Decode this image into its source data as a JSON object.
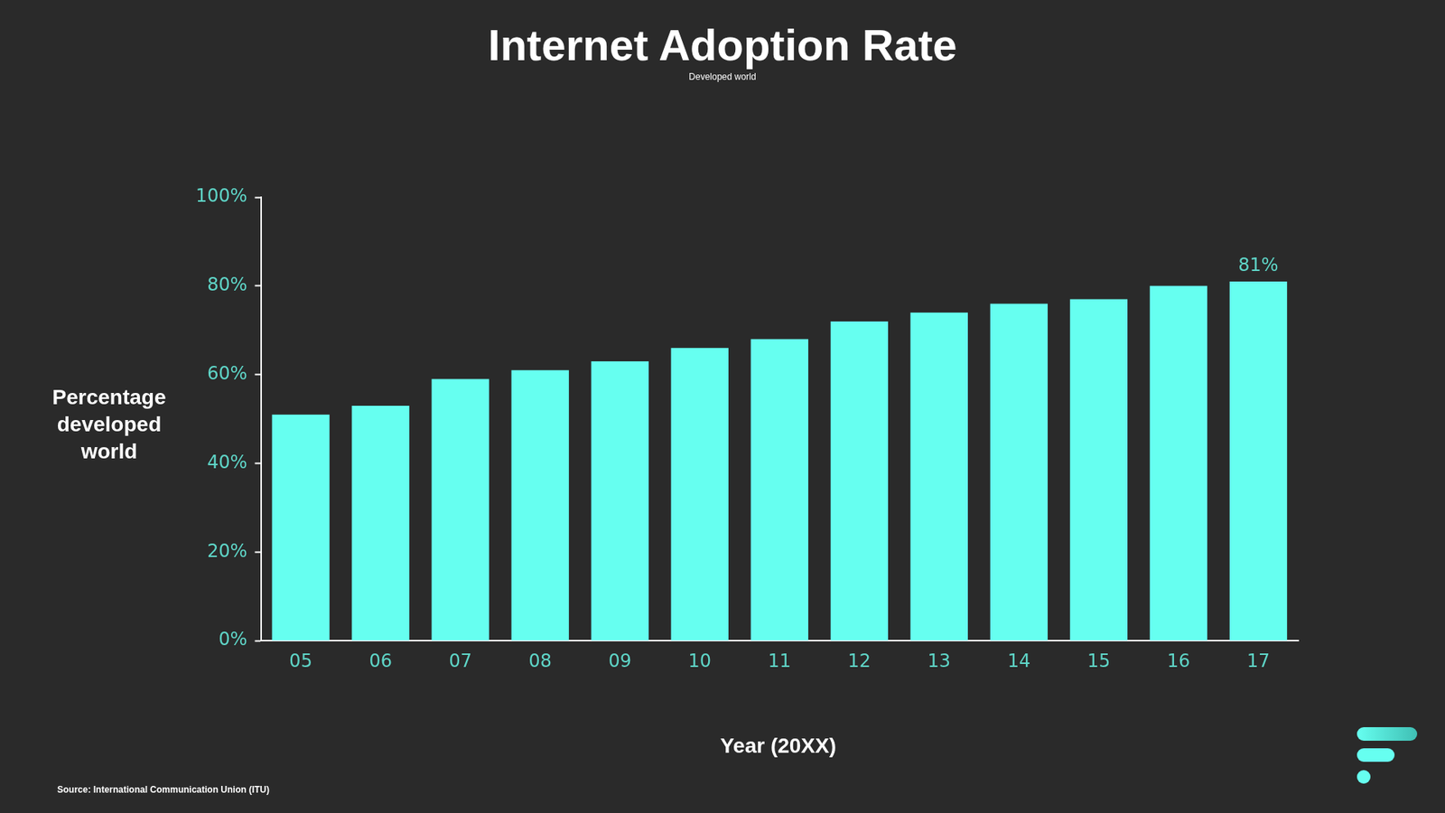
{
  "chart_data": {
    "type": "bar",
    "title": "Internet Adoption Rate",
    "subtitle": "Developed world",
    "y_label": "Percentage developed world",
    "x_label": "Year (20XX)",
    "source": "Source: International Communication Union (ITU)",
    "categories": [
      "05",
      "06",
      "07",
      "08",
      "09",
      "10",
      "11",
      "12",
      "13",
      "14",
      "15",
      "16",
      "17"
    ],
    "values": [
      51,
      53,
      59,
      61,
      63,
      66,
      68,
      72,
      74,
      76,
      77,
      80,
      81
    ],
    "color": "#66fff0",
    "ylim": [
      0,
      100
    ],
    "yticks": [
      {
        "value": 0,
        "label": "0%"
      },
      {
        "value": 20,
        "label": "20%"
      },
      {
        "value": 40,
        "label": "40%"
      },
      {
        "value": 60,
        "label": "60%"
      },
      {
        "value": 80,
        "label": "80%"
      },
      {
        "value": 100,
        "label": "100%"
      }
    ],
    "grid": false,
    "annotations": [
      {
        "category": "17",
        "value": 81,
        "text": "81%"
      }
    ]
  }
}
